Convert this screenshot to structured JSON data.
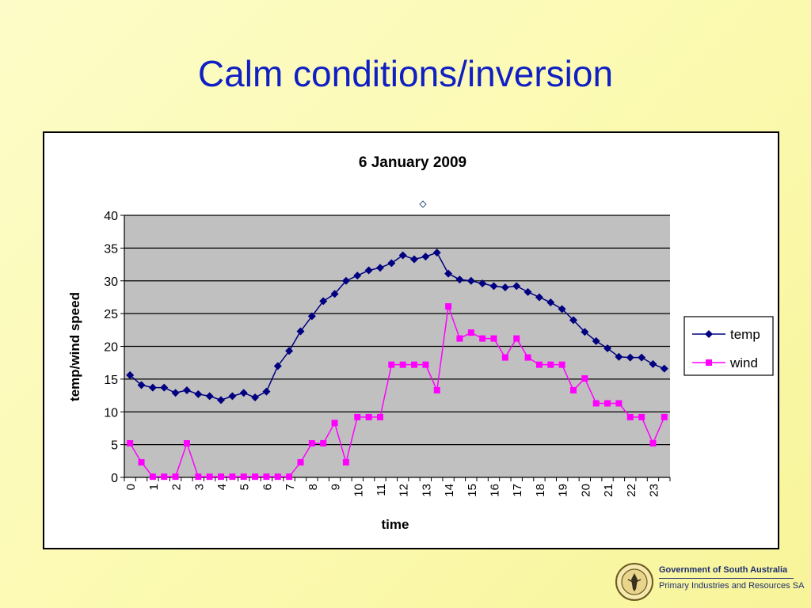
{
  "slide": {
    "title": "Calm conditions/inversion"
  },
  "footer": {
    "org_name": "Government of South Australia",
    "dept_name": "Primary Industries and Resources SA",
    "seal_icon": "state-seal-icon",
    "seal_text": "SOUTH AUSTRALIA"
  },
  "chart_data": {
    "type": "line",
    "title": "6 January 2009",
    "xlabel": "time",
    "ylabel": "temp/wind speed",
    "ylim": [
      0,
      40
    ],
    "yticks": [
      0,
      5,
      10,
      15,
      20,
      25,
      30,
      35,
      40
    ],
    "x_tick_labels": [
      "0",
      "1",
      "2",
      "3",
      "4",
      "5",
      "6",
      "7",
      "8",
      "9",
      "10",
      "11",
      "12",
      "13",
      "14",
      "15",
      "16",
      "17",
      "18",
      "19",
      "20",
      "21",
      "22",
      "23"
    ],
    "x_step": 0.5,
    "grid": "horizontal",
    "plot_background": "#c0c0c0",
    "legend_placement": "right",
    "series": [
      {
        "name": "temp",
        "color": "#000080",
        "marker": "diamond",
        "values": [
          15.6,
          14.1,
          13.7,
          13.7,
          12.9,
          13.3,
          12.7,
          12.4,
          11.8,
          12.4,
          12.9,
          12.2,
          13.1,
          17.0,
          19.3,
          22.3,
          24.6,
          26.9,
          28.0,
          30.0,
          30.8,
          31.6,
          32.0,
          32.7,
          33.9,
          33.3,
          33.7,
          34.3,
          31.1,
          30.2,
          30.0,
          29.6,
          29.2,
          29.0,
          29.2,
          28.3,
          27.5,
          26.7,
          25.7,
          24.0,
          22.2,
          20.8,
          19.7,
          18.4,
          18.3,
          18.3,
          17.3,
          16.6
        ]
      },
      {
        "name": "wind",
        "color": "#ff00ff",
        "marker": "square",
        "values": [
          5.2,
          2.3,
          0.1,
          0.1,
          0.1,
          5.2,
          0.1,
          0.1,
          0.1,
          0.1,
          0.1,
          0.1,
          0.1,
          0.1,
          0.1,
          2.3,
          5.2,
          5.2,
          8.3,
          2.3,
          9.2,
          9.2,
          9.2,
          17.2,
          17.2,
          17.2,
          17.2,
          13.3,
          26.1,
          21.2,
          22.1,
          21.2,
          21.2,
          18.3,
          21.2,
          18.3,
          17.2,
          17.2,
          17.2,
          13.3,
          15.1,
          11.3,
          11.3,
          11.3,
          9.2,
          9.2,
          5.2,
          9.2
        ]
      }
    ]
  }
}
